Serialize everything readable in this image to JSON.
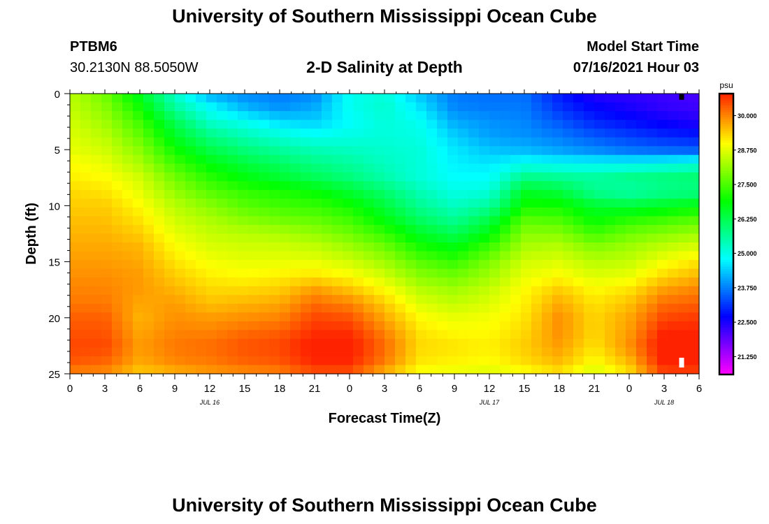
{
  "header": {
    "title": "University of Southern Mississippi Ocean Cube",
    "station_id": "PTBM6",
    "coords": "30.2130N  88.5050W",
    "subtitle": "2-D Salinity at Depth",
    "model_start_label": "Model Start Time",
    "model_start_value": "07/16/2021 Hour 03"
  },
  "footer": {
    "title": "University of Southern Mississippi Ocean Cube"
  },
  "chart_data": {
    "type": "heatmap",
    "title": "2-D Salinity at Depth",
    "xlabel": "Forecast Time(Z)",
    "ylabel": "Depth (ft)",
    "x_range_hours": [
      0,
      54
    ],
    "x_ticks": [
      "0",
      "3",
      "6",
      "9",
      "12",
      "15",
      "18",
      "21",
      "0",
      "3",
      "6",
      "9",
      "12",
      "15",
      "18",
      "21",
      "0",
      "3",
      "6"
    ],
    "date_labels": [
      {
        "text": "JUL 16",
        "hour": 12
      },
      {
        "text": "JUL 17",
        "hour": 36
      },
      {
        "text": "JUL 18",
        "hour": 51
      }
    ],
    "y_range": [
      0,
      25
    ],
    "y_ticks": [
      0,
      5,
      10,
      15,
      20,
      25
    ],
    "depth_levels": [
      0,
      1.25,
      2.5,
      3.75,
      5,
      6.25,
      7.5,
      8.75,
      10,
      11.25,
      12.5,
      13.75,
      15,
      16.25,
      17.5,
      18.75,
      20,
      21.25,
      22.5,
      23.75,
      25
    ],
    "time_hours": [
      0,
      3,
      6,
      9,
      12,
      15,
      18,
      21,
      24,
      27,
      30,
      33,
      36,
      39,
      42,
      45,
      48,
      51,
      54
    ],
    "salinity_psu": [
      [
        28.4,
        27.8,
        26.6,
        25.2,
        24.1,
        23.8,
        23.7,
        23.8,
        24.9,
        25.1,
        24.3,
        23.7,
        23.6,
        23.6,
        22.9,
        22.4,
        22.3,
        22.2,
        22.1
      ],
      [
        28.5,
        28.0,
        27.0,
        25.6,
        24.8,
        24.2,
        23.9,
        24.1,
        24.9,
        25.2,
        24.6,
        23.8,
        23.7,
        23.7,
        23.1,
        22.7,
        22.5,
        22.3,
        22.2
      ],
      [
        28.6,
        28.2,
        27.4,
        26.2,
        25.2,
        24.9,
        24.5,
        24.4,
        24.8,
        25.1,
        24.9,
        24.1,
        23.9,
        23.8,
        23.4,
        23.0,
        22.8,
        22.6,
        22.4
      ],
      [
        28.7,
        28.4,
        27.7,
        26.6,
        25.8,
        25.4,
        25.1,
        24.9,
        25.0,
        25.1,
        25.0,
        24.4,
        24.0,
        23.9,
        23.7,
        23.4,
        23.2,
        23.0,
        22.9
      ],
      [
        28.8,
        28.6,
        28.0,
        27.0,
        26.3,
        25.9,
        25.6,
        25.4,
        25.3,
        25.2,
        25.1,
        24.6,
        24.3,
        24.2,
        24.0,
        23.8,
        23.6,
        23.5,
        23.4
      ],
      [
        29.0,
        28.8,
        28.3,
        27.4,
        26.8,
        26.4,
        26.1,
        25.8,
        25.6,
        25.3,
        25.1,
        24.7,
        24.6,
        24.9,
        24.8,
        24.8,
        24.8,
        24.9,
        25.1
      ],
      [
        29.1,
        29.0,
        28.6,
        27.8,
        27.2,
        26.8,
        26.5,
        26.2,
        25.9,
        25.5,
        25.1,
        24.8,
        24.8,
        25.8,
        25.7,
        25.6,
        25.8,
        25.9,
        26.0
      ],
      [
        29.3,
        29.2,
        28.8,
        28.1,
        27.6,
        27.3,
        27.1,
        26.9,
        26.5,
        26.0,
        25.4,
        25.0,
        25.1,
        26.6,
        26.4,
        25.7,
        25.5,
        25.7,
        25.8
      ],
      [
        29.4,
        29.4,
        29.0,
        28.4,
        28.0,
        27.6,
        27.4,
        27.3,
        27.0,
        26.4,
        25.7,
        25.3,
        25.6,
        27.0,
        27.0,
        26.5,
        26.4,
        26.6,
        26.8
      ],
      [
        29.5,
        29.5,
        29.2,
        28.6,
        28.3,
        28.0,
        27.8,
        27.7,
        27.4,
        26.8,
        26.1,
        25.7,
        26.3,
        27.6,
        27.5,
        26.9,
        27.2,
        27.4,
        27.6
      ],
      [
        29.6,
        29.6,
        29.4,
        28.8,
        28.5,
        28.4,
        28.3,
        28.1,
        27.8,
        27.3,
        26.6,
        26.2,
        26.8,
        28.0,
        28.0,
        27.4,
        27.8,
        28.0,
        28.2
      ],
      [
        29.7,
        29.7,
        29.6,
        29.0,
        28.7,
        28.6,
        28.6,
        28.5,
        28.2,
        27.8,
        27.1,
        26.8,
        27.4,
        28.3,
        28.4,
        28.0,
        28.2,
        28.5,
        28.7
      ],
      [
        29.8,
        29.8,
        29.7,
        29.2,
        28.9,
        28.8,
        28.8,
        28.8,
        28.6,
        28.2,
        27.6,
        27.3,
        27.9,
        28.6,
        28.7,
        28.4,
        28.5,
        28.9,
        29.2
      ],
      [
        29.9,
        29.9,
        29.8,
        29.4,
        29.1,
        29.0,
        29.1,
        29.2,
        29.0,
        28.6,
        28.0,
        27.8,
        28.2,
        28.8,
        29.0,
        28.7,
        28.8,
        29.3,
        29.6
      ],
      [
        30.0,
        30.0,
        29.8,
        29.6,
        29.3,
        29.3,
        29.4,
        29.8,
        29.5,
        29.0,
        28.4,
        28.2,
        28.5,
        29.0,
        29.4,
        29.0,
        29.2,
        29.8,
        30.0
      ],
      [
        30.1,
        30.1,
        29.7,
        29.8,
        29.5,
        29.6,
        29.7,
        30.2,
        30.0,
        29.4,
        28.7,
        28.5,
        28.7,
        29.1,
        29.7,
        29.2,
        29.5,
        30.2,
        30.3
      ],
      [
        30.3,
        30.3,
        29.6,
        29.9,
        29.8,
        29.9,
        30.0,
        30.5,
        30.4,
        29.7,
        29.0,
        28.8,
        28.9,
        29.2,
        29.9,
        29.3,
        29.7,
        30.5,
        30.6
      ],
      [
        30.4,
        30.4,
        29.7,
        30.0,
        30.0,
        30.2,
        30.3,
        30.7,
        30.7,
        30.0,
        29.2,
        29.0,
        29.0,
        29.3,
        29.9,
        29.3,
        29.8,
        30.8,
        30.8
      ],
      [
        30.5,
        30.5,
        29.8,
        30.1,
        30.2,
        30.4,
        30.5,
        30.9,
        30.9,
        30.2,
        29.3,
        29.2,
        29.1,
        29.4,
        29.8,
        29.2,
        29.9,
        31.0,
        31.0
      ],
      [
        30.4,
        30.3,
        29.7,
        30.0,
        30.1,
        30.3,
        30.4,
        30.8,
        30.8,
        30.1,
        29.2,
        29.1,
        29.0,
        29.3,
        29.6,
        29.0,
        29.6,
        30.9,
        30.9
      ],
      [
        30.0,
        29.9,
        29.4,
        29.6,
        29.8,
        29.9,
        30.0,
        30.4,
        30.4,
        29.6,
        28.9,
        28.8,
        28.7,
        28.9,
        29.2,
        28.6,
        29.2,
        30.5,
        30.5
      ]
    ],
    "colorbar": {
      "unit": "psu",
      "range": [
        20.6,
        30.8
      ],
      "tick_values": [
        30.0,
        28.75,
        27.5,
        26.25,
        25.0,
        23.75,
        22.5,
        21.25
      ],
      "tick_labels": [
        "30.000",
        "28.750",
        "27.500",
        "26.250",
        "25.000",
        "23.750",
        "22.500",
        "21.250"
      ]
    },
    "markers": [
      {
        "label": "black tick",
        "hour": 52.5,
        "depth": 0.3,
        "color": "#000000"
      },
      {
        "label": "white tick",
        "hour": 52.5,
        "depth": 24.0,
        "color": "#ffffff"
      }
    ]
  }
}
